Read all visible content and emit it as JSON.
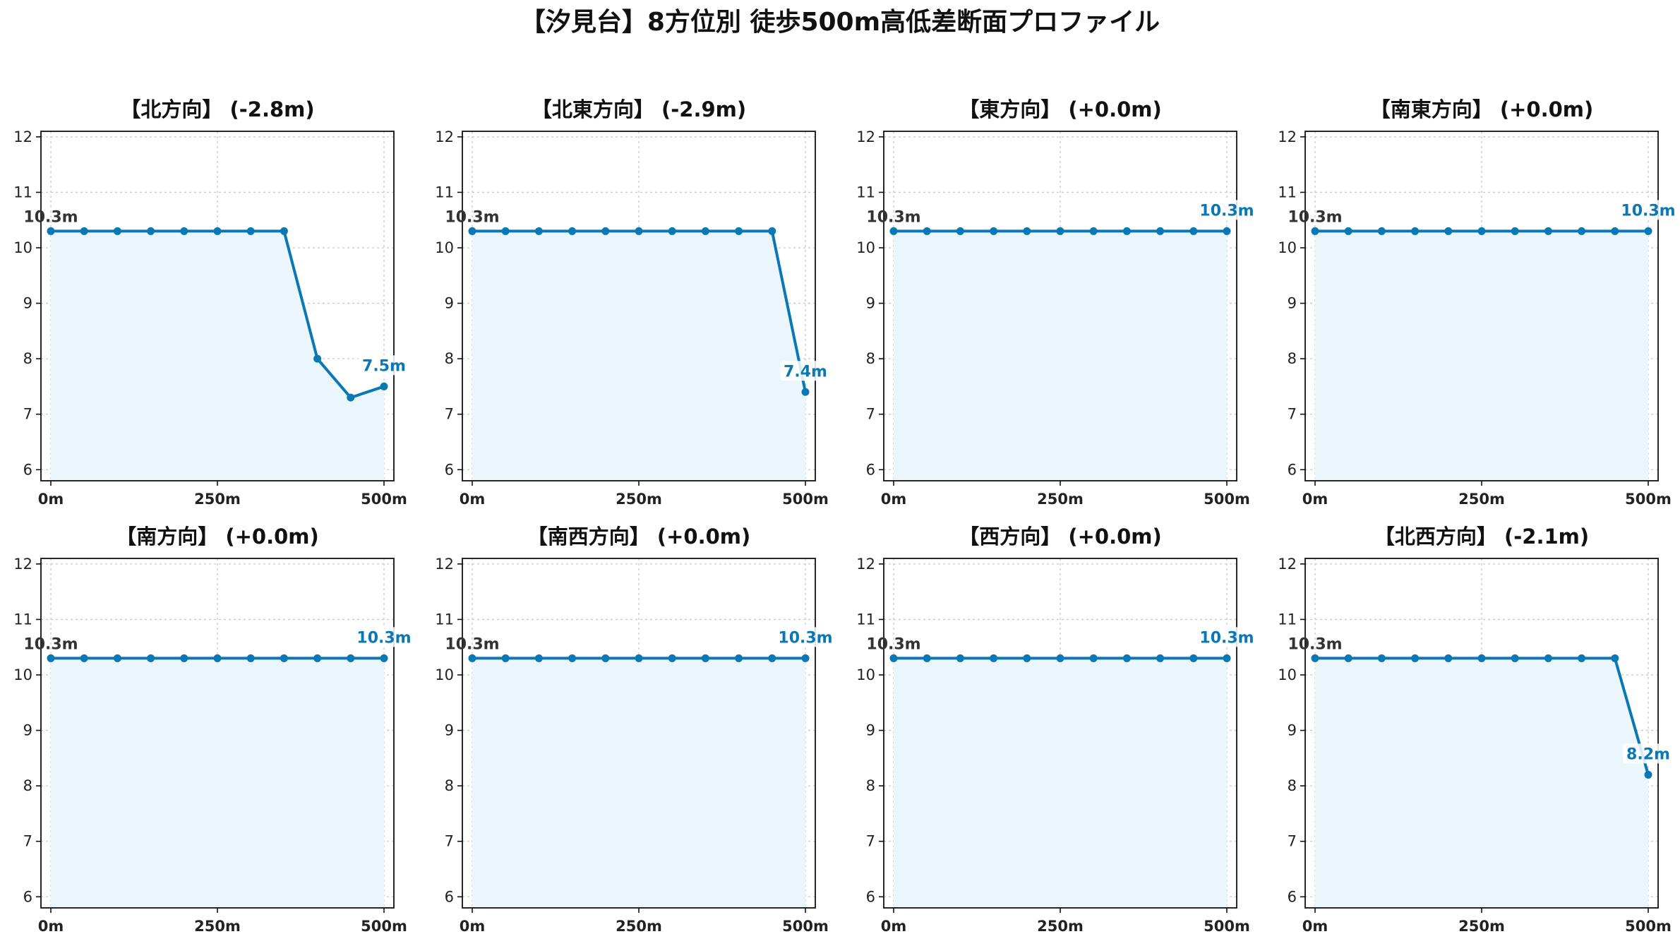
{
  "title": "【汐見台】8方位別 徒歩500m高低差断面プロファイル",
  "colors": {
    "line": "#0a78b4",
    "fill": "#eaf6fc",
    "start_label": "#333333",
    "end_label": "#0a78b4"
  },
  "chart_data": [
    {
      "type": "area",
      "title": "【北方向】 (-2.8m)",
      "x": [
        0,
        50,
        100,
        150,
        200,
        250,
        300,
        350,
        400,
        450,
        500
      ],
      "y": [
        10.3,
        10.3,
        10.3,
        10.3,
        10.3,
        10.3,
        10.3,
        10.3,
        8.0,
        7.3,
        7.5
      ],
      "xlim": [
        0,
        500
      ],
      "ylim": [
        5.8,
        12.1
      ],
      "xticks": [
        0,
        250,
        500
      ],
      "xtick_labels": [
        "0m",
        "250m",
        "500m"
      ],
      "yticks": [
        6,
        7,
        8,
        9,
        10,
        11,
        12
      ],
      "ytick_labels": [
        "6",
        "7",
        "8",
        "9",
        "10",
        "11",
        "12"
      ],
      "grid": true,
      "start_label": "10.3m",
      "end_label": "7.5m"
    },
    {
      "type": "area",
      "title": "【北東方向】 (-2.9m)",
      "x": [
        0,
        50,
        100,
        150,
        200,
        250,
        300,
        350,
        400,
        450,
        500
      ],
      "y": [
        10.3,
        10.3,
        10.3,
        10.3,
        10.3,
        10.3,
        10.3,
        10.3,
        10.3,
        10.3,
        7.4
      ],
      "xlim": [
        0,
        500
      ],
      "ylim": [
        5.8,
        12.1
      ],
      "xticks": [
        0,
        250,
        500
      ],
      "xtick_labels": [
        "0m",
        "250m",
        "500m"
      ],
      "yticks": [
        6,
        7,
        8,
        9,
        10,
        11,
        12
      ],
      "ytick_labels": [
        "6",
        "7",
        "8",
        "9",
        "10",
        "11",
        "12"
      ],
      "grid": true,
      "start_label": "10.3m",
      "end_label": "7.4m"
    },
    {
      "type": "area",
      "title": "【東方向】 (+0.0m)",
      "x": [
        0,
        50,
        100,
        150,
        200,
        250,
        300,
        350,
        400,
        450,
        500
      ],
      "y": [
        10.3,
        10.3,
        10.3,
        10.3,
        10.3,
        10.3,
        10.3,
        10.3,
        10.3,
        10.3,
        10.3
      ],
      "xlim": [
        0,
        500
      ],
      "ylim": [
        5.8,
        12.1
      ],
      "xticks": [
        0,
        250,
        500
      ],
      "xtick_labels": [
        "0m",
        "250m",
        "500m"
      ],
      "yticks": [
        6,
        7,
        8,
        9,
        10,
        11,
        12
      ],
      "ytick_labels": [
        "6",
        "7",
        "8",
        "9",
        "10",
        "11",
        "12"
      ],
      "grid": true,
      "start_label": "10.3m",
      "end_label": "10.3m"
    },
    {
      "type": "area",
      "title": "【南東方向】 (+0.0m)",
      "x": [
        0,
        50,
        100,
        150,
        200,
        250,
        300,
        350,
        400,
        450,
        500
      ],
      "y": [
        10.3,
        10.3,
        10.3,
        10.3,
        10.3,
        10.3,
        10.3,
        10.3,
        10.3,
        10.3,
        10.3
      ],
      "xlim": [
        0,
        500
      ],
      "ylim": [
        5.8,
        12.1
      ],
      "xticks": [
        0,
        250,
        500
      ],
      "xtick_labels": [
        "0m",
        "250m",
        "500m"
      ],
      "yticks": [
        6,
        7,
        8,
        9,
        10,
        11,
        12
      ],
      "ytick_labels": [
        "6",
        "7",
        "8",
        "9",
        "10",
        "11",
        "12"
      ],
      "grid": true,
      "start_label": "10.3m",
      "end_label": "10.3m"
    },
    {
      "type": "area",
      "title": "【南方向】 (+0.0m)",
      "x": [
        0,
        50,
        100,
        150,
        200,
        250,
        300,
        350,
        400,
        450,
        500
      ],
      "y": [
        10.3,
        10.3,
        10.3,
        10.3,
        10.3,
        10.3,
        10.3,
        10.3,
        10.3,
        10.3,
        10.3
      ],
      "xlim": [
        0,
        500
      ],
      "ylim": [
        5.8,
        12.1
      ],
      "xticks": [
        0,
        250,
        500
      ],
      "xtick_labels": [
        "0m",
        "250m",
        "500m"
      ],
      "yticks": [
        6,
        7,
        8,
        9,
        10,
        11,
        12
      ],
      "ytick_labels": [
        "6",
        "7",
        "8",
        "9",
        "10",
        "11",
        "12"
      ],
      "grid": true,
      "start_label": "10.3m",
      "end_label": "10.3m"
    },
    {
      "type": "area",
      "title": "【南西方向】 (+0.0m)",
      "x": [
        0,
        50,
        100,
        150,
        200,
        250,
        300,
        350,
        400,
        450,
        500
      ],
      "y": [
        10.3,
        10.3,
        10.3,
        10.3,
        10.3,
        10.3,
        10.3,
        10.3,
        10.3,
        10.3,
        10.3
      ],
      "xlim": [
        0,
        500
      ],
      "ylim": [
        5.8,
        12.1
      ],
      "xticks": [
        0,
        250,
        500
      ],
      "xtick_labels": [
        "0m",
        "250m",
        "500m"
      ],
      "yticks": [
        6,
        7,
        8,
        9,
        10,
        11,
        12
      ],
      "ytick_labels": [
        "6",
        "7",
        "8",
        "9",
        "10",
        "11",
        "12"
      ],
      "grid": true,
      "start_label": "10.3m",
      "end_label": "10.3m"
    },
    {
      "type": "area",
      "title": "【西方向】 (+0.0m)",
      "x": [
        0,
        50,
        100,
        150,
        200,
        250,
        300,
        350,
        400,
        450,
        500
      ],
      "y": [
        10.3,
        10.3,
        10.3,
        10.3,
        10.3,
        10.3,
        10.3,
        10.3,
        10.3,
        10.3,
        10.3
      ],
      "xlim": [
        0,
        500
      ],
      "ylim": [
        5.8,
        12.1
      ],
      "xticks": [
        0,
        250,
        500
      ],
      "xtick_labels": [
        "0m",
        "250m",
        "500m"
      ],
      "yticks": [
        6,
        7,
        8,
        9,
        10,
        11,
        12
      ],
      "ytick_labels": [
        "6",
        "7",
        "8",
        "9",
        "10",
        "11",
        "12"
      ],
      "grid": true,
      "start_label": "10.3m",
      "end_label": "10.3m"
    },
    {
      "type": "area",
      "title": "【北西方向】 (-2.1m)",
      "x": [
        0,
        50,
        100,
        150,
        200,
        250,
        300,
        350,
        400,
        450,
        500
      ],
      "y": [
        10.3,
        10.3,
        10.3,
        10.3,
        10.3,
        10.3,
        10.3,
        10.3,
        10.3,
        10.3,
        8.2
      ],
      "xlim": [
        0,
        500
      ],
      "ylim": [
        5.8,
        12.1
      ],
      "xticks": [
        0,
        250,
        500
      ],
      "xtick_labels": [
        "0m",
        "250m",
        "500m"
      ],
      "yticks": [
        6,
        7,
        8,
        9,
        10,
        11,
        12
      ],
      "ytick_labels": [
        "6",
        "7",
        "8",
        "9",
        "10",
        "11",
        "12"
      ],
      "grid": true,
      "start_label": "10.3m",
      "end_label": "8.2m"
    }
  ]
}
